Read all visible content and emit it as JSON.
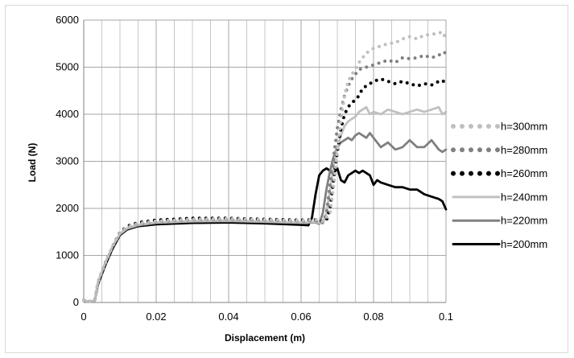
{
  "chart_data": {
    "type": "line",
    "title": "",
    "xlabel": "Displacement (m)",
    "ylabel": "Load (N)",
    "xlim": [
      0,
      0.1
    ],
    "ylim": [
      0,
      6000
    ],
    "x_ticks": [
      0,
      0.02,
      0.04,
      0.06,
      0.08,
      0.1
    ],
    "x_tick_labels": [
      "0",
      "0.02",
      "0.04",
      "0.06",
      "0.08",
      "0.1"
    ],
    "y_ticks": [
      0,
      1000,
      2000,
      3000,
      4000,
      5000,
      6000
    ],
    "y_tick_labels": [
      "0",
      "1000",
      "2000",
      "3000",
      "4000",
      "5000",
      "6000"
    ],
    "grid": true,
    "legend_position": "right",
    "series": [
      {
        "name": "h=300mm",
        "color": "#bfbfbf",
        "style": "dotted",
        "points": [
          [
            0,
            50
          ],
          [
            0.001,
            20
          ],
          [
            0.003,
            30
          ],
          [
            0.004,
            450
          ],
          [
            0.006,
            850
          ],
          [
            0.008,
            1200
          ],
          [
            0.01,
            1480
          ],
          [
            0.012,
            1600
          ],
          [
            0.015,
            1680
          ],
          [
            0.02,
            1730
          ],
          [
            0.03,
            1770
          ],
          [
            0.04,
            1780
          ],
          [
            0.05,
            1760
          ],
          [
            0.06,
            1740
          ],
          [
            0.064,
            1760
          ],
          [
            0.066,
            1720
          ],
          [
            0.068,
            1900
          ],
          [
            0.069,
            2500
          ],
          [
            0.07,
            3200
          ],
          [
            0.071,
            3900
          ],
          [
            0.072,
            4400
          ],
          [
            0.073,
            4700
          ],
          [
            0.074,
            4850
          ],
          [
            0.075,
            4950
          ],
          [
            0.076,
            5100
          ],
          [
            0.077,
            5200
          ],
          [
            0.078,
            5300
          ],
          [
            0.08,
            5400
          ],
          [
            0.082,
            5450
          ],
          [
            0.084,
            5500
          ],
          [
            0.086,
            5520
          ],
          [
            0.088,
            5600
          ],
          [
            0.09,
            5650
          ],
          [
            0.092,
            5600
          ],
          [
            0.094,
            5680
          ],
          [
            0.096,
            5700
          ],
          [
            0.098,
            5720
          ],
          [
            0.099,
            5750
          ],
          [
            0.1,
            5600
          ]
        ]
      },
      {
        "name": "h=280mm",
        "color": "#808080",
        "style": "dotted",
        "points": [
          [
            0,
            50
          ],
          [
            0.001,
            20
          ],
          [
            0.003,
            30
          ],
          [
            0.004,
            450
          ],
          [
            0.006,
            850
          ],
          [
            0.008,
            1200
          ],
          [
            0.01,
            1470
          ],
          [
            0.012,
            1600
          ],
          [
            0.015,
            1670
          ],
          [
            0.02,
            1720
          ],
          [
            0.03,
            1760
          ],
          [
            0.04,
            1770
          ],
          [
            0.05,
            1750
          ],
          [
            0.06,
            1730
          ],
          [
            0.064,
            1740
          ],
          [
            0.066,
            1700
          ],
          [
            0.067,
            1900
          ],
          [
            0.068,
            2500
          ],
          [
            0.069,
            3100
          ],
          [
            0.07,
            3700
          ],
          [
            0.071,
            4100
          ],
          [
            0.072,
            4400
          ],
          [
            0.073,
            4600
          ],
          [
            0.074,
            4750
          ],
          [
            0.075,
            4850
          ],
          [
            0.076,
            4950
          ],
          [
            0.078,
            5000
          ],
          [
            0.08,
            5050
          ],
          [
            0.082,
            5100
          ],
          [
            0.084,
            5150
          ],
          [
            0.086,
            5100
          ],
          [
            0.088,
            5200
          ],
          [
            0.09,
            5180
          ],
          [
            0.092,
            5200
          ],
          [
            0.094,
            5250
          ],
          [
            0.096,
            5200
          ],
          [
            0.098,
            5250
          ],
          [
            0.099,
            5320
          ],
          [
            0.1,
            5300
          ]
        ]
      },
      {
        "name": "h=260mm",
        "color": "#000000",
        "style": "dotted",
        "points": [
          [
            0,
            50
          ],
          [
            0.001,
            20
          ],
          [
            0.003,
            30
          ],
          [
            0.004,
            450
          ],
          [
            0.006,
            850
          ],
          [
            0.008,
            1200
          ],
          [
            0.01,
            1490
          ],
          [
            0.012,
            1620
          ],
          [
            0.015,
            1700
          ],
          [
            0.02,
            1750
          ],
          [
            0.03,
            1790
          ],
          [
            0.04,
            1790
          ],
          [
            0.05,
            1770
          ],
          [
            0.06,
            1750
          ],
          [
            0.064,
            1760
          ],
          [
            0.066,
            1720
          ],
          [
            0.067,
            1750
          ],
          [
            0.068,
            2000
          ],
          [
            0.069,
            2600
          ],
          [
            0.07,
            3200
          ],
          [
            0.071,
            3700
          ],
          [
            0.072,
            4000
          ],
          [
            0.073,
            4150
          ],
          [
            0.074,
            4250
          ],
          [
            0.075,
            4300
          ],
          [
            0.076,
            4400
          ],
          [
            0.077,
            4550
          ],
          [
            0.078,
            4600
          ],
          [
            0.08,
            4700
          ],
          [
            0.082,
            4750
          ],
          [
            0.084,
            4700
          ],
          [
            0.086,
            4650
          ],
          [
            0.088,
            4700
          ],
          [
            0.09,
            4650
          ],
          [
            0.092,
            4600
          ],
          [
            0.094,
            4650
          ],
          [
            0.096,
            4620
          ],
          [
            0.098,
            4700
          ],
          [
            0.099,
            4720
          ],
          [
            0.1,
            4650
          ]
        ]
      },
      {
        "name": "h=240mm",
        "color": "#c0c0c0",
        "style": "solid",
        "points": [
          [
            0,
            50
          ],
          [
            0.001,
            20
          ],
          [
            0.003,
            30
          ],
          [
            0.004,
            450
          ],
          [
            0.006,
            850
          ],
          [
            0.008,
            1200
          ],
          [
            0.01,
            1460
          ],
          [
            0.012,
            1580
          ],
          [
            0.015,
            1650
          ],
          [
            0.02,
            1700
          ],
          [
            0.03,
            1730
          ],
          [
            0.04,
            1740
          ],
          [
            0.05,
            1720
          ],
          [
            0.06,
            1700
          ],
          [
            0.064,
            1710
          ],
          [
            0.066,
            1680
          ],
          [
            0.067,
            1900
          ],
          [
            0.068,
            2400
          ],
          [
            0.069,
            2900
          ],
          [
            0.07,
            3300
          ],
          [
            0.071,
            3550
          ],
          [
            0.072,
            3750
          ],
          [
            0.073,
            3850
          ],
          [
            0.074,
            3900
          ],
          [
            0.075,
            3950
          ],
          [
            0.076,
            4050
          ],
          [
            0.077,
            4100
          ],
          [
            0.078,
            4150
          ],
          [
            0.079,
            4000
          ],
          [
            0.08,
            4050
          ],
          [
            0.082,
            4000
          ],
          [
            0.084,
            4100
          ],
          [
            0.086,
            4050
          ],
          [
            0.088,
            4000
          ],
          [
            0.09,
            4050
          ],
          [
            0.092,
            4100
          ],
          [
            0.094,
            4050
          ],
          [
            0.096,
            4100
          ],
          [
            0.098,
            4150
          ],
          [
            0.099,
            4000
          ],
          [
            0.1,
            4050
          ]
        ]
      },
      {
        "name": "h=220mm",
        "color": "#808080",
        "style": "solid",
        "points": [
          [
            0,
            50
          ],
          [
            0.001,
            20
          ],
          [
            0.003,
            30
          ],
          [
            0.004,
            450
          ],
          [
            0.006,
            850
          ],
          [
            0.008,
            1200
          ],
          [
            0.01,
            1450
          ],
          [
            0.012,
            1570
          ],
          [
            0.015,
            1640
          ],
          [
            0.02,
            1690
          ],
          [
            0.03,
            1720
          ],
          [
            0.04,
            1730
          ],
          [
            0.05,
            1710
          ],
          [
            0.06,
            1690
          ],
          [
            0.064,
            1700
          ],
          [
            0.065,
            1670
          ],
          [
            0.066,
            1900
          ],
          [
            0.067,
            2400
          ],
          [
            0.068,
            2800
          ],
          [
            0.069,
            3100
          ],
          [
            0.07,
            3300
          ],
          [
            0.071,
            3400
          ],
          [
            0.072,
            3450
          ],
          [
            0.073,
            3500
          ],
          [
            0.074,
            3450
          ],
          [
            0.075,
            3550
          ],
          [
            0.076,
            3600
          ],
          [
            0.077,
            3550
          ],
          [
            0.078,
            3500
          ],
          [
            0.079,
            3600
          ],
          [
            0.08,
            3500
          ],
          [
            0.082,
            3300
          ],
          [
            0.084,
            3400
          ],
          [
            0.086,
            3250
          ],
          [
            0.088,
            3300
          ],
          [
            0.09,
            3450
          ],
          [
            0.092,
            3300
          ],
          [
            0.094,
            3300
          ],
          [
            0.096,
            3450
          ],
          [
            0.098,
            3250
          ],
          [
            0.099,
            3200
          ],
          [
            0.1,
            3250
          ]
        ]
      },
      {
        "name": "h=200mm",
        "color": "#000000",
        "style": "solid",
        "points": [
          [
            0,
            50
          ],
          [
            0.001,
            20
          ],
          [
            0.003,
            30
          ],
          [
            0.004,
            400
          ],
          [
            0.006,
            800
          ],
          [
            0.008,
            1150
          ],
          [
            0.01,
            1430
          ],
          [
            0.012,
            1550
          ],
          [
            0.015,
            1620
          ],
          [
            0.02,
            1660
          ],
          [
            0.03,
            1690
          ],
          [
            0.04,
            1700
          ],
          [
            0.05,
            1680
          ],
          [
            0.06,
            1650
          ],
          [
            0.062,
            1640
          ],
          [
            0.063,
            1800
          ],
          [
            0.064,
            2300
          ],
          [
            0.065,
            2700
          ],
          [
            0.066,
            2800
          ],
          [
            0.067,
            2850
          ],
          [
            0.068,
            2800
          ],
          [
            0.069,
            2750
          ],
          [
            0.07,
            2850
          ],
          [
            0.071,
            2600
          ],
          [
            0.072,
            2550
          ],
          [
            0.073,
            2700
          ],
          [
            0.074,
            2750
          ],
          [
            0.075,
            2800
          ],
          [
            0.076,
            2750
          ],
          [
            0.077,
            2800
          ],
          [
            0.078,
            2750
          ],
          [
            0.079,
            2700
          ],
          [
            0.08,
            2500
          ],
          [
            0.081,
            2600
          ],
          [
            0.082,
            2550
          ],
          [
            0.084,
            2500
          ],
          [
            0.086,
            2450
          ],
          [
            0.088,
            2450
          ],
          [
            0.09,
            2400
          ],
          [
            0.092,
            2400
          ],
          [
            0.094,
            2300
          ],
          [
            0.096,
            2250
          ],
          [
            0.098,
            2200
          ],
          [
            0.099,
            2150
          ],
          [
            0.1,
            1980
          ]
        ]
      }
    ]
  }
}
